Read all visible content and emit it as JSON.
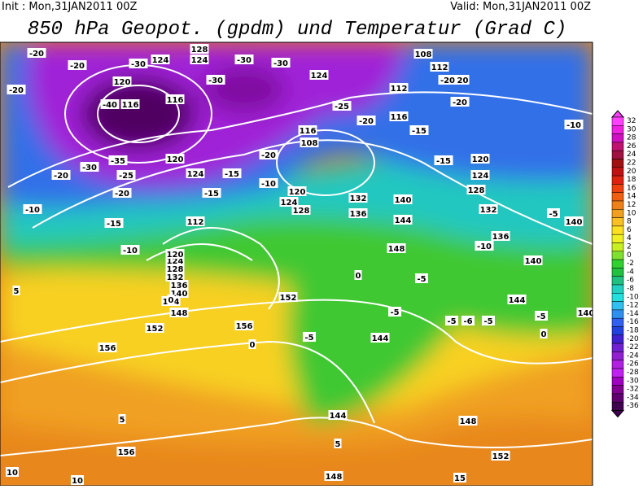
{
  "header": {
    "init": "Init : Mon,31JAN2011 00Z",
    "valid": "Valid: Mon,31JAN2011 00Z",
    "title": "850 hPa Geopot. (gpdm) und Temperatur (Grad C)"
  },
  "colorbar": {
    "ticks": [
      32,
      30,
      28,
      26,
      24,
      22,
      20,
      18,
      16,
      14,
      12,
      10,
      8,
      6,
      4,
      2,
      0,
      -2,
      -4,
      -6,
      -8,
      -10,
      -12,
      -14,
      -16,
      -18,
      -20,
      -22,
      -24,
      -26,
      -28,
      -30,
      -32,
      -34,
      -36
    ],
    "colors": [
      "#ff40ff",
      "#f020e0",
      "#d010c0",
      "#c01070",
      "#a01040",
      "#a01010",
      "#c01010",
      "#e02010",
      "#f04010",
      "#f06010",
      "#f08018",
      "#f0a020",
      "#f8c020",
      "#ffe020",
      "#f0f020",
      "#c8f020",
      "#80e030",
      "#30d030",
      "#20c040",
      "#20c080",
      "#20d0c0",
      "#20e0e0",
      "#30c0f0",
      "#3090f0",
      "#3060f0",
      "#2040e0",
      "#4020d0",
      "#7020d0",
      "#9020d0",
      "#b020e0",
      "#c020f0",
      "#a000c0",
      "#800090",
      "#600070",
      "#400050"
    ]
  },
  "map": {
    "labels": [
      "-20",
      "-20",
      "-30",
      "124",
      "128",
      "124",
      "-30",
      "-30",
      "-30",
      "120",
      "116",
      "116",
      "-40",
      "-20",
      "124",
      "-25",
      "-20",
      "112",
      "116",
      "-15",
      "120",
      "-20",
      "-20",
      "112",
      "108",
      "-10",
      "-15",
      "120",
      "124",
      "128",
      "132",
      "136",
      "-10",
      "140",
      "-5",
      "140",
      "140",
      "116",
      "108",
      "120",
      "124",
      "128",
      "132",
      "136",
      "140",
      "144",
      "148",
      "-5",
      "-5",
      "144",
      "-5",
      "-6",
      "-5",
      "144",
      "152",
      "156",
      "152",
      "156",
      "148",
      "144",
      "140",
      "136",
      "132",
      "128",
      "124",
      "120",
      "112",
      "-10",
      "-10",
      "-15",
      "-20",
      "-20",
      "-25",
      "-30",
      "-35",
      "120",
      "124",
      "-15",
      "-15",
      "-10",
      "-20",
      "0",
      "5",
      "0",
      "0",
      "5",
      "5",
      "156",
      "148",
      "148",
      "152",
      "10",
      "10",
      "15",
      "-5",
      "144",
      "0",
      "-5"
    ]
  }
}
